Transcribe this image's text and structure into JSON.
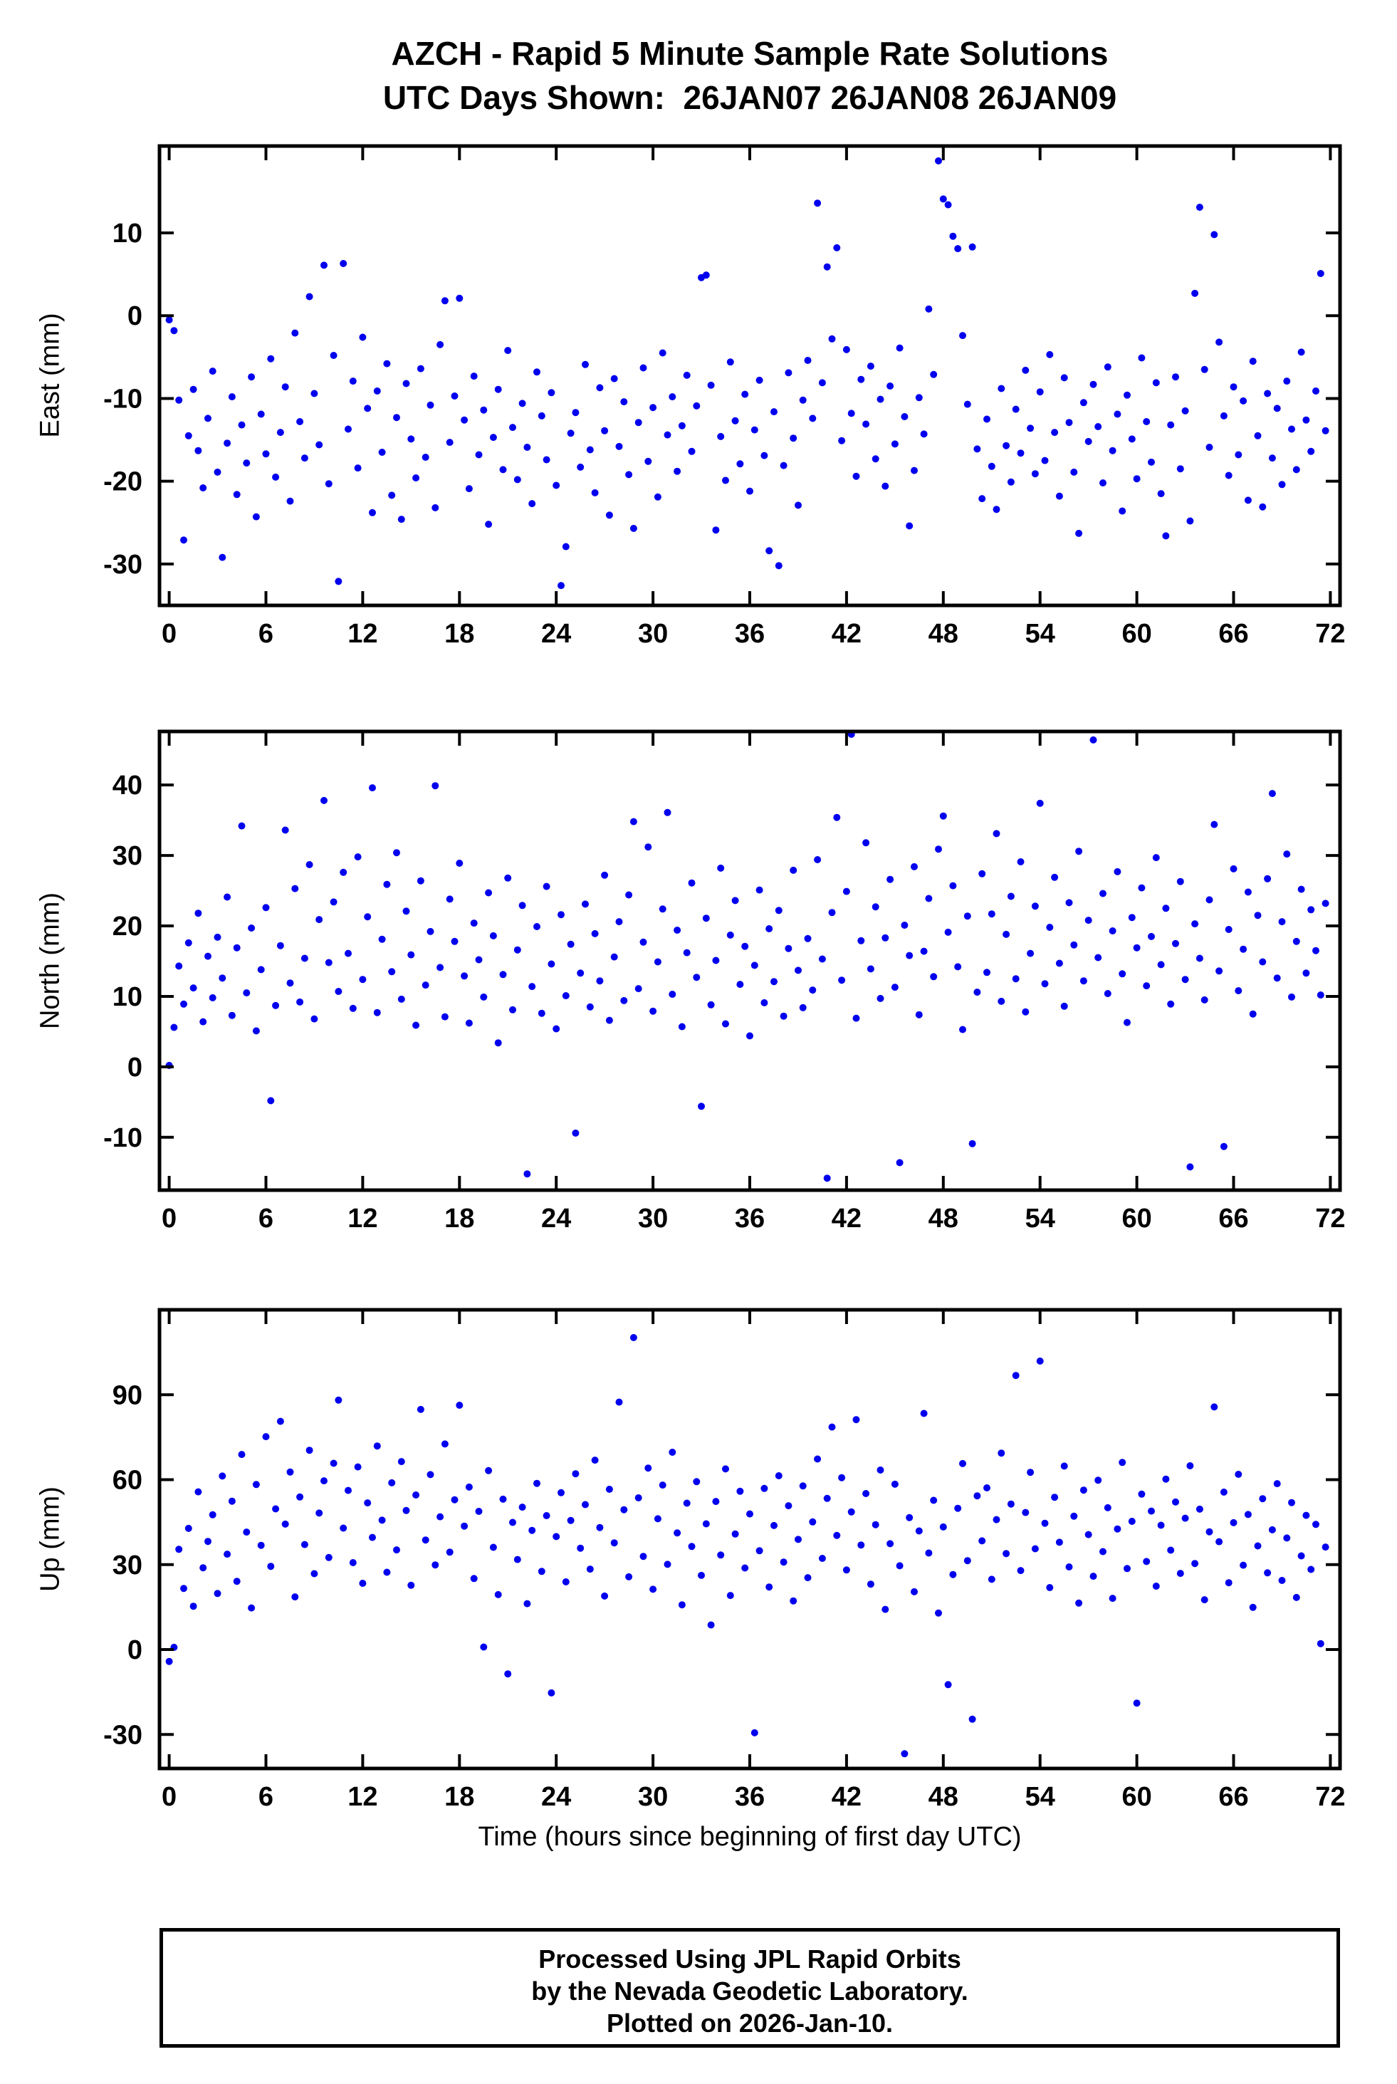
{
  "header": {
    "title_line1": "AZCH - Rapid 5 Minute Sample Rate Solutions",
    "title_line2": "UTC Days Shown:  26JAN07 26JAN08 26JAN09"
  },
  "footer": {
    "line1": "Processed Using JPL Rapid Orbits",
    "line2": "by the Nevada Geodetic Laboratory.",
    "line3": "Plotted on 2026-Jan-10."
  },
  "colors": {
    "marker": "#0000ee",
    "frame": "#000000"
  },
  "chart_data": {
    "type": "scatter",
    "title": "AZCH - Rapid 5 Minute Sample Rate Solutions",
    "subtitle": "UTC Days Shown:  26JAN07 26JAN08 26JAN09",
    "x": {
      "label": "Time (hours since beginning of first day UTC)",
      "lim": [
        -0.6,
        72.6
      ],
      "ticks": [
        0,
        6,
        12,
        18,
        24,
        30,
        36,
        42,
        48,
        54,
        60,
        66,
        72
      ],
      "start": 0,
      "step": 0.3
    },
    "panels": [
      {
        "name": "east",
        "ylabel": "East (mm)",
        "ylim": [
          -35,
          20.5
        ],
        "yticks": [
          -30,
          -20,
          -10,
          0,
          10
        ],
        "y": [
          -0.5,
          -1.8,
          -10.2,
          -27.1,
          -14.5,
          -8.9,
          -16.3,
          -20.8,
          -12.4,
          -6.7,
          -18.9,
          -29.2,
          -15.4,
          -9.8,
          -21.6,
          -13.2,
          -17.8,
          -7.4,
          -24.3,
          -11.9,
          -16.7,
          -5.2,
          -19.5,
          -14.1,
          -8.6,
          -22.4,
          -2.1,
          -12.8,
          -17.2,
          2.3,
          -9.4,
          -15.6,
          6.1,
          -20.3,
          -4.8,
          -32.1,
          6.3,
          -13.7,
          -7.9,
          -18.4,
          -2.6,
          -11.2,
          -23.8,
          -9.1,
          -16.5,
          -5.8,
          -21.7,
          -12.3,
          -24.6,
          -8.2,
          -14.9,
          -19.6,
          -6.4,
          -17.1,
          -10.8,
          -23.2,
          -3.5,
          1.8,
          -15.3,
          -9.7,
          2.1,
          -12.6,
          -20.9,
          -7.3,
          -16.8,
          -11.4,
          -25.2,
          -14.7,
          -8.9,
          -18.6,
          -4.2,
          -13.5,
          -19.8,
          -10.6,
          -15.9,
          -22.7,
          -6.8,
          -12.1,
          -17.4,
          -9.3,
          -20.5,
          -32.6,
          -27.9,
          -14.2,
          -11.7,
          -18.3,
          -5.9,
          -16.2,
          -21.4,
          -8.7,
          -13.9,
          -24.1,
          -7.6,
          -15.8,
          -10.4,
          -19.2,
          -25.7,
          -12.9,
          -6.3,
          -17.6,
          -11.1,
          -21.9,
          -4.5,
          -14.4,
          -9.8,
          -18.8,
          -13.3,
          -7.2,
          -16.4,
          -10.9,
          4.6,
          4.9,
          -8.4,
          -25.9,
          -14.6,
          -19.9,
          -5.6,
          -12.7,
          -17.9,
          -9.5,
          -21.2,
          -13.8,
          -7.8,
          -16.9,
          -28.4,
          -11.6,
          -30.2,
          -18.1,
          -6.9,
          -14.8,
          -22.9,
          -10.2,
          -5.4,
          -12.4,
          13.6,
          -8.1,
          5.9,
          -2.8,
          8.2,
          -15.1,
          -4.1,
          -11.8,
          -19.4,
          -7.7,
          -13.1,
          -6.1,
          -17.3,
          -10.1,
          -20.6,
          -8.5,
          -15.5,
          -3.9,
          -12.2,
          -25.4,
          -18.7,
          -9.9,
          -14.3,
          0.8,
          -7.1,
          18.7,
          14.1,
          13.4,
          9.6,
          8.1,
          -2.4,
          -10.7,
          8.3,
          -16.1,
          -22.1,
          -12.5,
          -18.2,
          -23.4,
          -8.8,
          -15.7,
          -20.1,
          -11.3,
          -16.6,
          -6.6,
          -13.6,
          -19.1,
          -9.2,
          -17.5,
          -4.7,
          -14.1,
          -21.8,
          -7.5,
          -12.9,
          -18.9,
          -26.3,
          -10.5,
          -15.2,
          -8.3,
          -13.4,
          -20.2,
          -6.2,
          -16.3,
          -11.9,
          -23.6,
          -9.6,
          -14.9,
          -19.7,
          -5.1,
          -12.8,
          -17.7,
          -8.1,
          -21.5,
          -26.6,
          -13.2,
          -7.4,
          -18.5,
          -11.5,
          -24.8,
          2.7,
          13.1,
          -6.5,
          -15.9,
          9.8,
          -3.2,
          -12.1,
          -19.3,
          -8.6,
          -16.8,
          -10.3,
          -22.3,
          -5.5,
          -14.5,
          -23.1,
          -9.4,
          -17.2,
          -11.2,
          -20.4,
          -7.9,
          -13.7,
          -18.6,
          -4.4,
          -12.6,
          -16.4,
          -9.1,
          5.1,
          -13.9
        ]
      },
      {
        "name": "north",
        "ylabel": "North (mm)",
        "ylim": [
          -17.5,
          47.6
        ],
        "yticks": [
          -10,
          0,
          10,
          20,
          30,
          40
        ],
        "y": [
          0.2,
          5.6,
          14.3,
          8.9,
          17.6,
          11.2,
          21.8,
          6.4,
          15.7,
          9.8,
          18.4,
          12.6,
          24.1,
          7.3,
          16.9,
          34.2,
          10.5,
          19.7,
          5.1,
          13.8,
          22.6,
          -4.8,
          8.7,
          17.2,
          33.6,
          11.9,
          25.3,
          9.2,
          15.4,
          28.7,
          6.8,
          20.9,
          37.8,
          14.8,
          23.4,
          10.7,
          27.6,
          16.1,
          8.3,
          29.8,
          12.4,
          21.3,
          39.6,
          7.7,
          18.1,
          25.9,
          13.5,
          30.4,
          9.6,
          22.1,
          15.9,
          5.9,
          26.4,
          11.6,
          19.2,
          39.9,
          14.1,
          7.1,
          23.8,
          17.8,
          28.9,
          12.9,
          6.2,
          20.4,
          15.2,
          9.9,
          24.7,
          18.6,
          3.4,
          13.1,
          26.8,
          8.1,
          16.6,
          22.9,
          -15.2,
          11.4,
          19.9,
          7.6,
          25.6,
          14.6,
          5.4,
          21.6,
          10.1,
          17.4,
          -9.4,
          13.3,
          23.1,
          8.5,
          18.9,
          12.2,
          27.2,
          6.6,
          15.6,
          20.6,
          9.4,
          24.4,
          34.8,
          11.1,
          17.7,
          31.2,
          7.9,
          14.9,
          22.4,
          36.1,
          10.3,
          19.4,
          5.7,
          16.2,
          26.1,
          12.7,
          -5.6,
          21.1,
          8.8,
          15.1,
          28.2,
          6.1,
          18.7,
          23.6,
          11.7,
          17.1,
          4.4,
          14.4,
          25.1,
          9.1,
          19.6,
          12.1,
          22.2,
          7.2,
          16.8,
          27.9,
          13.7,
          8.4,
          18.2,
          10.9,
          29.4,
          15.3,
          -15.8,
          21.9,
          35.4,
          12.3,
          24.9,
          47.2,
          6.9,
          17.9,
          31.8,
          13.9,
          22.7,
          9.7,
          18.3,
          26.6,
          11.3,
          -13.6,
          20.1,
          15.8,
          28.4,
          7.4,
          16.4,
          23.9,
          12.8,
          30.9,
          35.6,
          19.1,
          25.7,
          14.2,
          5.3,
          21.4,
          -10.9,
          10.6,
          27.4,
          13.4,
          21.7,
          33.1,
          9.3,
          18.8,
          24.2,
          12.5,
          29.1,
          7.8,
          16.1,
          22.8,
          37.4,
          11.8,
          19.8,
          26.9,
          14.7,
          8.6,
          23.3,
          17.3,
          30.6,
          12.2,
          20.8,
          46.4,
          15.5,
          24.6,
          10.4,
          19.3,
          27.7,
          13.2,
          6.3,
          21.2,
          16.9,
          25.4,
          11.5,
          18.5,
          29.7,
          14.5,
          22.5,
          8.9,
          17.5,
          26.3,
          12.4,
          -14.2,
          20.3,
          15.4,
          9.5,
          23.7,
          34.4,
          13.6,
          -11.3,
          19.5,
          28.1,
          10.8,
          16.7,
          24.8,
          7.5,
          21.5,
          14.9,
          26.7,
          38.8,
          12.6,
          20.6,
          30.2,
          9.9,
          17.8,
          25.2,
          13.3,
          22.3,
          16.5,
          10.2,
          23.2
        ]
      },
      {
        "name": "up",
        "ylabel": "Up (mm)",
        "ylim": [
          -42,
          120
        ],
        "yticks": [
          -30,
          0,
          30,
          60,
          90
        ],
        "y": [
          -4.2,
          0.8,
          35.4,
          21.6,
          42.8,
          15.3,
          55.7,
          28.9,
          38.2,
          47.6,
          19.8,
          61.3,
          33.7,
          52.4,
          24.1,
          68.9,
          41.5,
          14.7,
          58.3,
          36.8,
          75.2,
          29.4,
          49.7,
          80.6,
          44.3,
          62.7,
          18.6,
          53.9,
          37.1,
          70.4,
          26.8,
          48.2,
          59.6,
          32.5,
          65.8,
          88.1,
          42.9,
          56.2,
          30.7,
          64.5,
          23.4,
          51.8,
          39.6,
          71.9,
          45.7,
          27.3,
          58.9,
          35.2,
          66.4,
          49.1,
          22.7,
          54.6,
          84.8,
          38.7,
          61.8,
          29.9,
          46.9,
          72.6,
          34.4,
          52.9,
          86.3,
          43.6,
          57.4,
          25.1,
          48.8,
          0.9,
          63.2,
          36.1,
          19.4,
          53.1,
          -8.6,
          44.9,
          31.8,
          50.3,
          16.2,
          42.1,
          58.7,
          27.6,
          47.3,
          -15.3,
          39.9,
          55.4,
          23.9,
          45.6,
          62.1,
          35.8,
          51.2,
          28.4,
          66.9,
          43.1,
          18.9,
          56.6,
          37.7,
          87.4,
          49.4,
          25.7,
          110.2,
          53.6,
          32.9,
          64.1,
          21.3,
          46.2,
          58.1,
          30.1,
          69.7,
          41.2,
          15.8,
          51.7,
          36.4,
          59.3,
          26.2,
          44.4,
          8.7,
          52.3,
          33.4,
          63.8,
          19.1,
          40.8,
          55.9,
          28.8,
          47.9,
          -29.4,
          34.9,
          56.9,
          22.1,
          43.8,
          61.4,
          30.9,
          50.8,
          17.2,
          38.9,
          57.8,
          25.4,
          45.1,
          67.3,
          32.2,
          53.4,
          78.6,
          40.3,
          60.7,
          28.1,
          48.6,
          81.2,
          36.9,
          55.1,
          23.1,
          44.1,
          63.4,
          14.2,
          37.4,
          58.4,
          29.6,
          -36.8,
          46.6,
          20.4,
          41.9,
          83.4,
          34.1,
          52.7,
          12.9,
          43.3,
          -12.4,
          26.5,
          49.9,
          65.7,
          31.4,
          -24.6,
          54.3,
          38.4,
          57.1,
          24.8,
          45.9,
          69.4,
          33.9,
          51.4,
          96.8,
          27.9,
          48.4,
          62.6,
          35.6,
          101.9,
          44.6,
          21.9,
          53.8,
          37.9,
          64.8,
          29.2,
          47.1,
          16.4,
          56.3,
          40.6,
          25.9,
          59.8,
          34.6,
          50.1,
          18.1,
          42.6,
          66.1,
          28.6,
          45.3,
          -18.9,
          54.9,
          31.1,
          48.9,
          22.4,
          43.9,
          60.2,
          35.1,
          52.1,
          26.9,
          46.4,
          64.9,
          30.4,
          49.6,
          17.6,
          41.6,
          85.7,
          38.1,
          55.6,
          23.6,
          44.8,
          61.9,
          29.8,
          47.7,
          14.9,
          36.6,
          53.3,
          27.1,
          42.3,
          58.6,
          24.4,
          39.4,
          51.9,
          18.4,
          33.1,
          47.4,
          28.3,
          44.2,
          2.1,
          36.2
        ]
      }
    ]
  }
}
